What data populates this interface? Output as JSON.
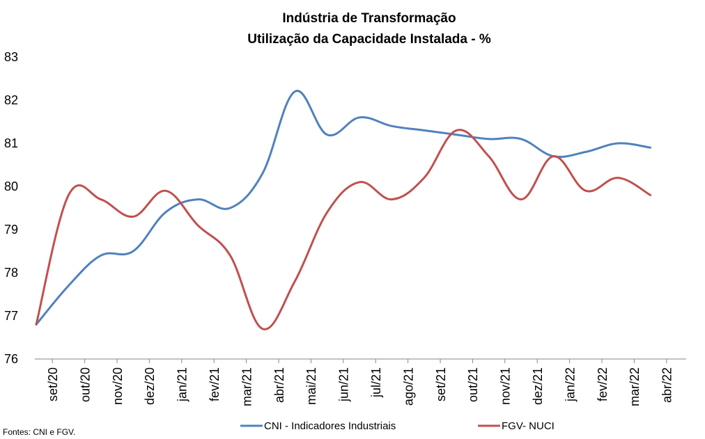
{
  "chart_data": {
    "type": "line",
    "title": "Indústria de Transformação",
    "subtitle": "Utilização da Capacidade Instalada - %",
    "xlabel": "",
    "ylabel": "",
    "categories": [
      "set/20",
      "out/20",
      "nov/20",
      "dez/20",
      "jan/21",
      "fev/21",
      "mar/21",
      "abr/21",
      "mai/21",
      "jun/21",
      "jul/21",
      "ago/21",
      "set/21",
      "out/21",
      "nov/21",
      "dez/21",
      "jan/22",
      "fev/22",
      "mar/22",
      "abr/22"
    ],
    "ylim": [
      76,
      83
    ],
    "yticks": [
      "76",
      "77",
      "78",
      "79",
      "80",
      "81",
      "82",
      "83"
    ],
    "grid": false,
    "legend_position": "bottom",
    "series": [
      {
        "name": "CNI - Indicadores Industriais",
        "color": "#4F81BD",
        "values": [
          76.8,
          77.7,
          78.4,
          78.5,
          79.4,
          79.7,
          79.5,
          80.3,
          82.2,
          81.2,
          81.6,
          81.4,
          81.3,
          81.2,
          81.1,
          81.1,
          80.7,
          80.8,
          81.0,
          80.9
        ]
      },
      {
        "name": "FGV- NUCI",
        "color": "#C0504D",
        "values": [
          76.8,
          79.8,
          79.7,
          79.3,
          79.9,
          79.1,
          78.4,
          76.7,
          77.8,
          79.4,
          80.1,
          79.7,
          80.2,
          81.3,
          80.7,
          79.7,
          80.7,
          79.9,
          80.2,
          79.8
        ]
      }
    ],
    "source": "Fontes: CNI e FGV."
  }
}
